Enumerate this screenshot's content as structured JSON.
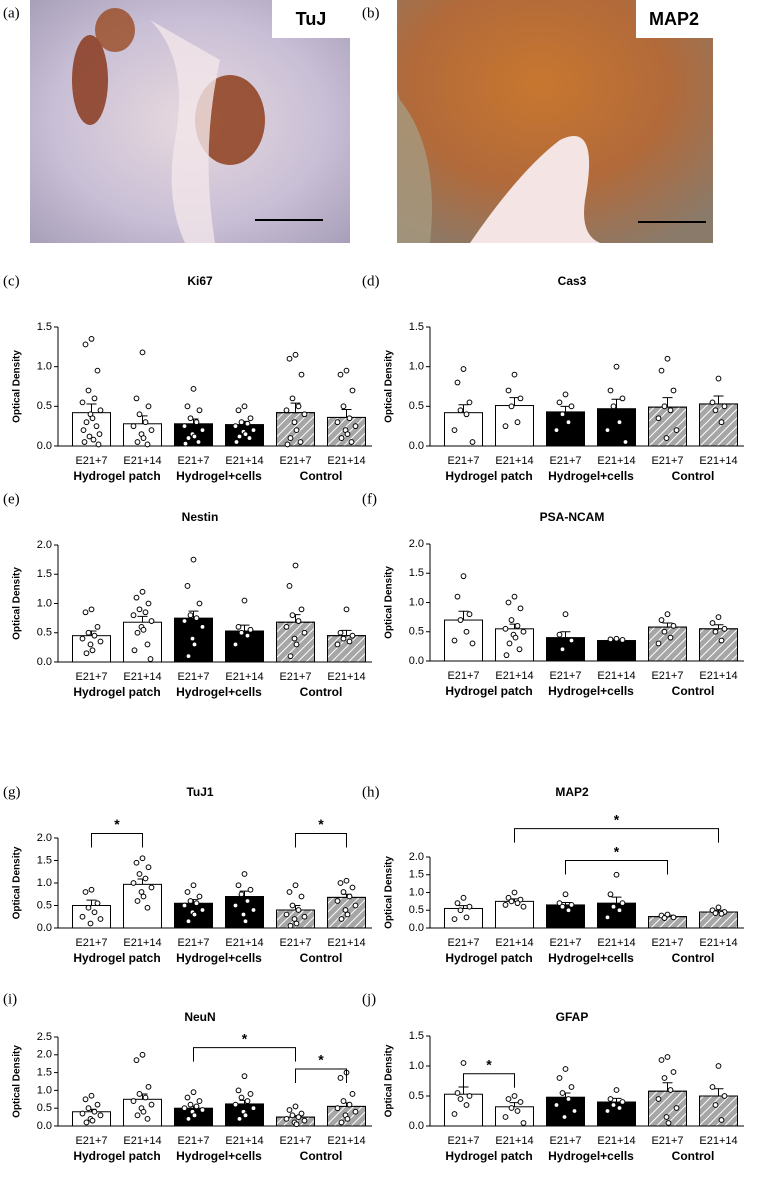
{
  "images": [
    {
      "panel": "(a)",
      "label": "TuJ"
    },
    {
      "panel": "(b)",
      "label": "MAP2"
    }
  ],
  "chart_data": [
    {
      "type": "bar",
      "panel": "(c)",
      "title": "Ki67",
      "ylabel": "Optical Density",
      "categories": [
        "E21+7",
        "E21+14",
        "E21+7",
        "E21+14",
        "E21+7",
        "E21+14"
      ],
      "groups": [
        "Hydrogel patch",
        "Hydrogel+cells",
        "Control"
      ],
      "colors": [
        "#ffffff",
        "#ffffff",
        "#000000",
        "#000000",
        "#a6a6a6",
        "#a6a6a6"
      ],
      "hatched": [
        false,
        false,
        false,
        false,
        true,
        true
      ],
      "values": [
        0.42,
        0.28,
        0.28,
        0.27,
        0.42,
        0.36
      ],
      "errors": [
        0.11,
        0.1,
        0.06,
        0.04,
        0.12,
        0.1
      ],
      "points": [
        [
          1.35,
          1.28,
          0.95,
          0.7,
          0.6,
          0.55,
          0.45,
          0.4,
          0.35,
          0.3,
          0.25,
          0.2,
          0.15,
          0.12,
          0.08,
          0.05,
          0.02
        ],
        [
          1.18,
          0.6,
          0.5,
          0.4,
          0.3,
          0.25,
          0.2,
          0.15,
          0.1,
          0.05,
          0.02
        ],
        [
          0.72,
          0.5,
          0.45,
          0.35,
          0.3,
          0.25,
          0.2,
          0.15,
          0.12,
          0.1,
          0.05,
          0.03
        ],
        [
          0.5,
          0.45,
          0.35,
          0.3,
          0.28,
          0.25,
          0.2,
          0.18,
          0.15,
          0.12,
          0.1,
          0.05
        ],
        [
          1.15,
          1.1,
          0.9,
          0.6,
          0.5,
          0.45,
          0.4,
          0.3,
          0.2,
          0.1,
          0.05,
          0.02
        ],
        [
          0.95,
          0.9,
          0.7,
          0.5,
          0.35,
          0.3,
          0.25,
          0.2,
          0.15,
          0.1,
          0.05
        ]
      ],
      "ylim": [
        0,
        1.5
      ],
      "yticks": [
        {
          "value": 0,
          "label": "0.0"
        },
        0.5,
        {
          "value": 1,
          "label": "1.0"
        },
        1.5
      ],
      "annotations": []
    },
    {
      "type": "bar",
      "panel": "(d)",
      "title": "Cas3",
      "ylabel": "Optical Density",
      "categories": [
        "E21+7",
        "E21+14",
        "E21+7",
        "E21+14",
        "E21+7",
        "E21+14"
      ],
      "groups": [
        "Hydrogel patch",
        "Hydrogel+cells",
        "Control"
      ],
      "colors": [
        "#ffffff",
        "#ffffff",
        "#000000",
        "#000000",
        "#a6a6a6",
        "#a6a6a6"
      ],
      "hatched": [
        false,
        false,
        false,
        false,
        true,
        true
      ],
      "values": [
        0.42,
        0.51,
        0.43,
        0.47,
        0.49,
        0.53
      ],
      "errors": [
        0.1,
        0.1,
        0.07,
        0.12,
        0.12,
        0.1
      ],
      "points": [
        [
          0.97,
          0.8,
          0.55,
          0.45,
          0.4,
          0.2,
          0.05
        ],
        [
          0.9,
          0.7,
          0.6,
          0.5,
          0.3,
          0.25
        ],
        [
          0.65,
          0.55,
          0.5,
          0.4,
          0.3,
          0.2
        ],
        [
          1.0,
          0.7,
          0.6,
          0.5,
          0.3,
          0.2,
          0.05
        ],
        [
          1.1,
          0.95,
          0.7,
          0.5,
          0.45,
          0.35,
          0.2,
          0.1
        ],
        [
          0.85,
          0.55,
          0.5,
          0.45,
          0.3
        ]
      ],
      "ylim": [
        0,
        1.5
      ],
      "yticks": [
        {
          "value": 0,
          "label": "0.0"
        },
        0.5,
        {
          "value": 1,
          "label": "1.0"
        },
        1.5
      ],
      "annotations": []
    },
    {
      "type": "bar",
      "panel": "(e)",
      "title": "Nestin",
      "ylabel": "Optical Density",
      "categories": [
        "E21+7",
        "E21+14",
        "E21+7",
        "E21+14",
        "E21+7",
        "E21+14"
      ],
      "groups": [
        "Hydrogel patch",
        "Hydrogel+cells",
        "Control"
      ],
      "colors": [
        "#ffffff",
        "#ffffff",
        "#000000",
        "#000000",
        "#a6a6a6",
        "#a6a6a6"
      ],
      "hatched": [
        false,
        false,
        false,
        false,
        true,
        true
      ],
      "values": [
        0.45,
        0.68,
        0.75,
        0.53,
        0.68,
        0.45
      ],
      "errors": [
        0.08,
        0.1,
        0.12,
        0.1,
        0.13,
        0.09
      ],
      "points": [
        [
          0.9,
          0.85,
          0.6,
          0.5,
          0.45,
          0.4,
          0.35,
          0.3,
          0.2,
          0.15
        ],
        [
          1.2,
          1.1,
          1.0,
          0.9,
          0.85,
          0.8,
          0.7,
          0.6,
          0.55,
          0.5,
          0.3,
          0.2,
          0.05
        ],
        [
          1.75,
          1.3,
          1.0,
          0.8,
          0.75,
          0.7,
          0.6,
          0.4,
          0.3,
          0.1
        ],
        [
          1.05,
          0.6,
          0.55,
          0.5,
          0.45,
          0.3
        ],
        [
          1.65,
          1.3,
          0.9,
          0.8,
          0.7,
          0.6,
          0.5,
          0.4,
          0.3,
          0.1
        ],
        [
          0.9,
          0.5,
          0.45,
          0.4,
          0.35,
          0.3
        ]
      ],
      "ylim": [
        0,
        2
      ],
      "yticks": [
        {
          "value": 0,
          "label": "0.0"
        },
        0.5,
        {
          "value": 1,
          "label": "1.0"
        },
        1.5,
        {
          "value": 2,
          "label": "2.0"
        }
      ],
      "annotations": []
    },
    {
      "type": "bar",
      "panel": "(f)",
      "title": "PSA-NCAM",
      "ylabel": "Optical Density",
      "categories": [
        "E21+7",
        "E21+14",
        "E21+7",
        "E21+14",
        "E21+7",
        "E21+14"
      ],
      "groups": [
        "Hydrogel patch",
        "Hydrogel+cells",
        "Control"
      ],
      "colors": [
        "#ffffff",
        "#ffffff",
        "#000000",
        "#000000",
        "#a6a6a6",
        "#a6a6a6"
      ],
      "hatched": [
        false,
        false,
        false,
        false,
        true,
        true
      ],
      "values": [
        0.7,
        0.55,
        0.4,
        0.35,
        0.58,
        0.55
      ],
      "errors": [
        0.15,
        0.08,
        0.1,
        0.02,
        0.07,
        0.07
      ],
      "points": [
        [
          1.45,
          1.1,
          0.8,
          0.7,
          0.5,
          0.35,
          0.3
        ],
        [
          1.1,
          1.0,
          0.9,
          0.7,
          0.6,
          0.55,
          0.5,
          0.45,
          0.4,
          0.3,
          0.2,
          0.1
        ],
        [
          0.8,
          0.45,
          0.35,
          0.2
        ],
        [
          0.38,
          0.37,
          0.36
        ],
        [
          0.8,
          0.7,
          0.6,
          0.5,
          0.4,
          0.3
        ],
        [
          0.75,
          0.65,
          0.55,
          0.5,
          0.35
        ]
      ],
      "ylim": [
        0,
        2
      ],
      "yticks": [
        {
          "value": 0,
          "label": "0.0"
        },
        0.5,
        {
          "value": 1,
          "label": "1.0"
        },
        1.5,
        {
          "value": 2,
          "label": "2.0"
        }
      ],
      "annotations": []
    },
    {
      "type": "bar",
      "panel": "(g)",
      "title": "TuJ1",
      "ylabel": "Optical Density",
      "categories": [
        "E21+7",
        "E21+14",
        "E21+7",
        "E21+14",
        "E21+7",
        "E21+14"
      ],
      "groups": [
        "Hydrogel patch",
        "Hydrogel+cells",
        "Control"
      ],
      "colors": [
        "#ffffff",
        "#ffffff",
        "#000000",
        "#000000",
        "#a6a6a6",
        "#a6a6a6"
      ],
      "hatched": [
        false,
        false,
        false,
        false,
        true,
        true
      ],
      "values": [
        0.5,
        0.97,
        0.55,
        0.7,
        0.4,
        0.68
      ],
      "errors": [
        0.12,
        0.12,
        0.08,
        0.12,
        0.1,
        0.07
      ],
      "points": [
        [
          0.85,
          0.8,
          0.55,
          0.45,
          0.35,
          0.25,
          0.2,
          0.1
        ],
        [
          1.55,
          1.45,
          1.35,
          1.2,
          1.1,
          1.0,
          0.9,
          0.8,
          0.7,
          0.6,
          0.45
        ],
        [
          0.95,
          0.8,
          0.7,
          0.6,
          0.55,
          0.5,
          0.4,
          0.35,
          0.3,
          0.15
        ],
        [
          1.2,
          0.95,
          0.85,
          0.75,
          0.6,
          0.5,
          0.4,
          0.3,
          0.15
        ],
        [
          0.95,
          0.8,
          0.7,
          0.5,
          0.4,
          0.3,
          0.25,
          0.2,
          0.1,
          0.05
        ],
        [
          1.05,
          1.0,
          0.9,
          0.8,
          0.7,
          0.6,
          0.5,
          0.4,
          0.3,
          0.2
        ]
      ],
      "ylim": [
        0,
        2
      ],
      "yticks": [
        {
          "value": 0,
          "label": "0.0"
        },
        0.5,
        {
          "value": 1,
          "label": "1.0"
        },
        1.5,
        {
          "value": 2,
          "label": "2.0"
        }
      ],
      "annotations": [
        {
          "from": 0,
          "to": 1,
          "y": 2.1,
          "label": "*"
        },
        {
          "from": 4,
          "to": 5,
          "y": 2.1,
          "label": "*"
        }
      ]
    },
    {
      "type": "bar",
      "panel": "(h)",
      "title": "MAP2",
      "ylabel": "Optical Density",
      "categories": [
        "E21+7",
        "E21+14",
        "E21+7",
        "E21+14",
        "E21+7",
        "E21+14"
      ],
      "groups": [
        "Hydrogel patch",
        "Hydrogel+cells",
        "Control"
      ],
      "colors": [
        "#ffffff",
        "#ffffff",
        "#000000",
        "#000000",
        "#a6a6a6",
        "#a6a6a6"
      ],
      "hatched": [
        false,
        false,
        false,
        false,
        true,
        true
      ],
      "values": [
        0.55,
        0.75,
        0.65,
        0.7,
        0.32,
        0.45
      ],
      "errors": [
        0.08,
        0.07,
        0.07,
        0.17,
        0.04,
        0.05
      ],
      "points": [
        [
          0.85,
          0.7,
          0.6,
          0.5,
          0.3,
          0.25
        ],
        [
          1.0,
          0.85,
          0.8,
          0.75,
          0.7,
          0.65,
          0.6
        ],
        [
          0.95,
          0.7,
          0.65,
          0.6,
          0.5
        ],
        [
          1.5,
          0.95,
          0.7,
          0.6,
          0.5,
          0.3
        ],
        [
          0.38,
          0.35,
          0.3,
          0.28
        ],
        [
          0.58,
          0.5,
          0.45,
          0.42,
          0.4
        ]
      ],
      "ylim": [
        0,
        2
      ],
      "yticks": [
        {
          "value": 0,
          "label": "0.0"
        },
        0.5,
        {
          "value": 1,
          "label": "1.0"
        },
        1.5,
        {
          "value": 2,
          "label": "2.0"
        }
      ],
      "annotations": [
        {
          "from": 1,
          "to": 5,
          "y": 2.8,
          "label": "*"
        },
        {
          "from": 2,
          "to": 4,
          "y": 1.9,
          "label": "*"
        }
      ]
    },
    {
      "type": "bar",
      "panel": "(i)",
      "title": "NeuN",
      "ylabel": "Optical Density",
      "categories": [
        "E21+7",
        "E21+14",
        "E21+7",
        "E21+14",
        "E21+7",
        "E21+14"
      ],
      "groups": [
        "Hydrogel patch",
        "Hydrogel+cells",
        "Control"
      ],
      "colors": [
        "#ffffff",
        "#ffffff",
        "#000000",
        "#000000",
        "#a6a6a6",
        "#a6a6a6"
      ],
      "hatched": [
        false,
        false,
        false,
        false,
        true,
        true
      ],
      "values": [
        0.4,
        0.75,
        0.5,
        0.62,
        0.25,
        0.55
      ],
      "errors": [
        0.07,
        0.15,
        0.06,
        0.1,
        0.04,
        0.1
      ],
      "points": [
        [
          0.85,
          0.75,
          0.6,
          0.5,
          0.4,
          0.35,
          0.3,
          0.2,
          0.15,
          0.1
        ],
        [
          2.0,
          1.85,
          1.1,
          0.9,
          0.8,
          0.7,
          0.6,
          0.5,
          0.4,
          0.3,
          0.2
        ],
        [
          0.95,
          0.8,
          0.7,
          0.6,
          0.55,
          0.5,
          0.45,
          0.4,
          0.3,
          0.2
        ],
        [
          1.4,
          1.0,
          0.9,
          0.8,
          0.7,
          0.6,
          0.5,
          0.4,
          0.3,
          0.2
        ],
        [
          0.55,
          0.45,
          0.35,
          0.3,
          0.25,
          0.2,
          0.15,
          0.1,
          0.05
        ],
        [
          1.5,
          1.35,
          0.9,
          0.7,
          0.6,
          0.5,
          0.4,
          0.3,
          0.2,
          0.1
        ]
      ],
      "ylim": [
        0,
        2.5
      ],
      "yticks": [
        {
          "value": 0,
          "label": "0.0"
        },
        0.5,
        {
          "value": 1,
          "label": "1.0"
        },
        1.5,
        {
          "value": 2,
          "label": "2.0"
        },
        2.5
      ],
      "annotations": [
        {
          "from": 2,
          "to": 4,
          "y": 2.2,
          "label": "*"
        },
        {
          "from": 4,
          "to": 5,
          "y": 1.6,
          "label": "*"
        }
      ]
    },
    {
      "type": "bar",
      "panel": "(j)",
      "title": "GFAP",
      "ylabel": "Optical Density",
      "categories": [
        "E21+7",
        "E21+14",
        "E21+7",
        "E21+14",
        "E21+7",
        "E21+14"
      ],
      "groups": [
        "Hydrogel patch",
        "Hydrogel+cells",
        "Control"
      ],
      "colors": [
        "#ffffff",
        "#ffffff",
        "#000000",
        "#000000",
        "#a6a6a6",
        "#a6a6a6"
      ],
      "hatched": [
        false,
        false,
        false,
        false,
        true,
        true
      ],
      "values": [
        0.53,
        0.32,
        0.48,
        0.4,
        0.58,
        0.5
      ],
      "errors": [
        0.12,
        0.07,
        0.07,
        0.06,
        0.14,
        0.12
      ],
      "points": [
        [
          1.05,
          0.55,
          0.5,
          0.45,
          0.35,
          0.2
        ],
        [
          0.5,
          0.45,
          0.4,
          0.3,
          0.25,
          0.15,
          0.05
        ],
        [
          0.95,
          0.8,
          0.65,
          0.55,
          0.45,
          0.35,
          0.25,
          0.15
        ],
        [
          0.6,
          0.45,
          0.4,
          0.35,
          0.3,
          0.25
        ],
        [
          1.15,
          1.1,
          0.9,
          0.8,
          0.6,
          0.45,
          0.3,
          0.15,
          0.05
        ],
        [
          1.0,
          0.65,
          0.5,
          0.35,
          0.1
        ]
      ],
      "ylim": [
        0,
        1.5
      ],
      "yticks": [
        {
          "value": 0,
          "label": "0.0"
        },
        0.5,
        {
          "value": 1,
          "label": "1.0"
        },
        1.5
      ],
      "annotations": [
        {
          "from": 0,
          "to": 1,
          "y": 0.87,
          "label": "*"
        }
      ]
    }
  ]
}
